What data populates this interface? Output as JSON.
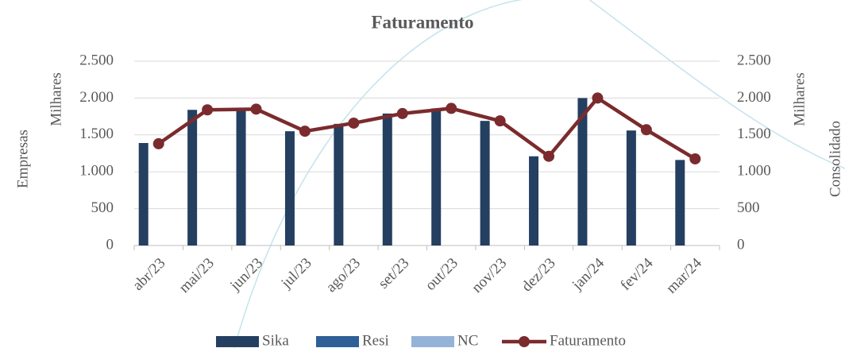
{
  "chart_data": {
    "type": "bar",
    "title": "Faturamento",
    "y_title": "Empresas",
    "y_unit": "Milhares",
    "y2_title": "Consolidado",
    "y2_unit": "Milhares",
    "categories": [
      "abr/23",
      "mai/23",
      "jun/23",
      "jul/23",
      "ago/23",
      "set/23",
      "out/23",
      "nov/23",
      "dez/23",
      "jan/24",
      "fev/24",
      "mar/24"
    ],
    "series": [
      {
        "name": "Sika",
        "type": "bar",
        "color": "#243f60",
        "values": [
          1390,
          1840,
          1850,
          1550,
          1650,
          1790,
          1860,
          1690,
          1210,
          2000,
          1560,
          1160
        ]
      },
      {
        "name": "Resi",
        "type": "bar",
        "color": "#2e5f96",
        "values": [
          0,
          0,
          0,
          0,
          0,
          0,
          0,
          0,
          0,
          0,
          0,
          0
        ]
      },
      {
        "name": "NC",
        "type": "bar",
        "color": "#95b3d7",
        "values": [
          0,
          0,
          0,
          0,
          0,
          0,
          0,
          0,
          0,
          0,
          0,
          0
        ]
      },
      {
        "name": "Faturamento",
        "type": "line",
        "axis": "y2",
        "color": "#7b2b2d",
        "values": [
          1380,
          1840,
          1850,
          1550,
          1660,
          1790,
          1860,
          1690,
          1210,
          2000,
          1570,
          1175
        ]
      }
    ],
    "ylim": [
      0,
      2500
    ],
    "yticks": [
      0,
      500,
      {
        "value": 1000,
        "label": "1.000"
      },
      {
        "value": 1500,
        "label": "1.500"
      },
      {
        "value": 2000,
        "label": "2.000"
      },
      {
        "value": 2500,
        "label": "2.500"
      }
    ],
    "y2lim": [
      0,
      2500
    ],
    "y2ticks": [
      0,
      500,
      {
        "value": 1000,
        "label": "1.000"
      },
      {
        "value": 1500,
        "label": "1.500"
      },
      {
        "value": 2000,
        "label": "2.000"
      },
      {
        "value": 2500,
        "label": "2.500"
      }
    ],
    "grid": true,
    "legend": "bottom"
  }
}
